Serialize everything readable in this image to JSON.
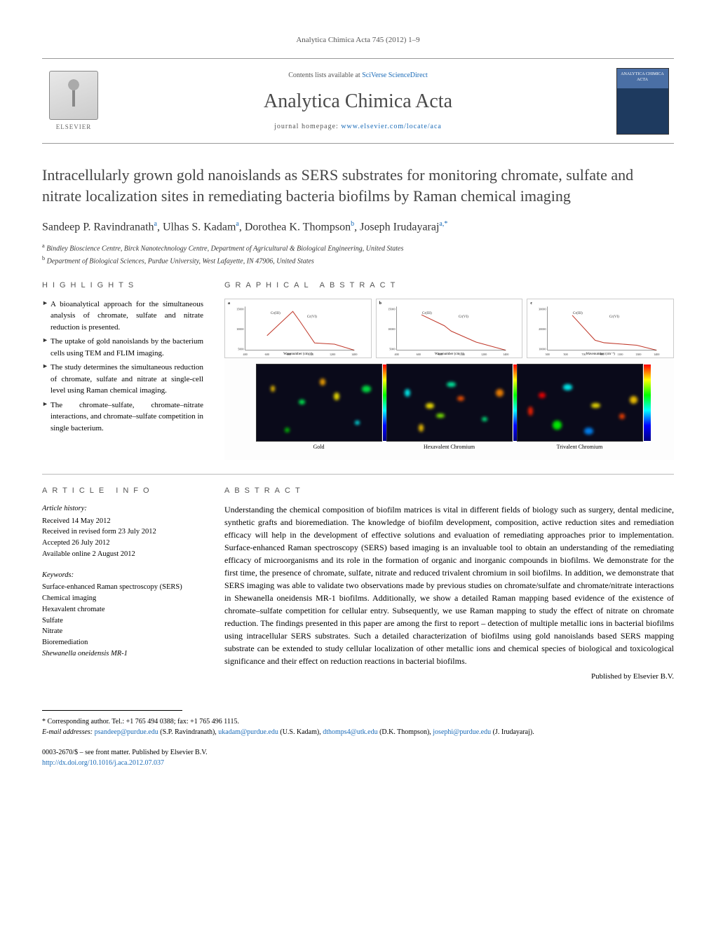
{
  "journal_ref": "Analytica Chimica Acta 745 (2012) 1–9",
  "header": {
    "contents_prefix": "Contents lists available at ",
    "contents_link": "SciVerse ScienceDirect",
    "journal_name": "Analytica Chimica Acta",
    "homepage_prefix": "journal homepage: ",
    "homepage_url": "www.elsevier.com/locate/aca",
    "publisher_label": "ELSEVIER",
    "cover_text": "ANALYTICA CHIMICA ACTA"
  },
  "title": "Intracellularly grown gold nanoislands as SERS substrates for monitoring chromate, sulfate and nitrate localization sites in remediating bacteria biofilms by Raman chemical imaging",
  "authors": [
    {
      "name": "Sandeep P. Ravindranath",
      "affil": "a"
    },
    {
      "name": "Ulhas S. Kadam",
      "affil": "a"
    },
    {
      "name": "Dorothea K. Thompson",
      "affil": "b"
    },
    {
      "name": "Joseph Irudayaraj",
      "affil": "a,*"
    }
  ],
  "author_separator": ", ",
  "affiliations": [
    {
      "sup": "a",
      "text": "Bindley Bioscience Centre, Birck Nanotechnology Centre, Department of Agricultural & Biological Engineering, United States"
    },
    {
      "sup": "b",
      "text": "Department of Biological Sciences, Purdue University, West Lafayette, IN 47906, United States"
    }
  ],
  "sections": {
    "highlights_heading": "HIGHLIGHTS",
    "graphical_heading": "GRAPHICAL ABSTRACT",
    "article_info_heading": "ARTICLE INFO",
    "abstract_heading": "ABSTRACT"
  },
  "highlights": [
    "A bioanalytical approach for the simultaneous analysis of chromate, sulfate and nitrate reduction is presented.",
    "The uptake of gold nanoislands by the bacterium cells using TEM and FLIM imaging.",
    "The study determines the simultaneous reduction of chromate, sulfate and nitrate at single-cell level using Raman chemical imaging.",
    "The chromate–sulfate, chromate–nitrate interactions, and chromate–sulfate competition in single bacterium."
  ],
  "graphical_abstract": {
    "charts": [
      {
        "label": "a",
        "ylabel": "Raman intensity (a.u.)",
        "xlabel": "Wavenumber (cm⁻¹)",
        "y_ticks": [
          "15000",
          "10000",
          "5000"
        ],
        "x_ticks": [
          "400",
          "600",
          "800",
          "1000",
          "1200",
          "1400"
        ],
        "annotations": [
          "Cr(III)",
          "Cr(VI)"
        ],
        "line_color": "#c0392b",
        "xlim": [
          300,
          1400
        ],
        "ylim": [
          0,
          18000
        ],
        "peaks": [
          [
            520,
            6000
          ],
          [
            780,
            16000
          ],
          [
            850,
            12000
          ],
          [
            1000,
            3000
          ],
          [
            1200,
            2500
          ]
        ]
      },
      {
        "label": "b",
        "ylabel": "Raman intensity (a.u.)",
        "xlabel": "Wavenumber (cm⁻¹)",
        "y_ticks": [
          "15000",
          "10000",
          "5000"
        ],
        "x_ticks": [
          "400",
          "600",
          "800",
          "1000",
          "1200",
          "1400"
        ],
        "annotations": [
          "Cr(III)",
          "Cr(VI)"
        ],
        "line_color": "#c0392b",
        "xlim": [
          300,
          1400
        ],
        "ylim": [
          0,
          16000
        ],
        "peaks": [
          [
            550,
            13000
          ],
          [
            780,
            9000
          ],
          [
            850,
            7000
          ],
          [
            1100,
            3000
          ]
        ]
      },
      {
        "label": "c",
        "ylabel": "Raman intensity (a.u.)",
        "xlabel": "Wavenumber (cm⁻¹)",
        "y_ticks": [
          "30000",
          "20000",
          "10000"
        ],
        "x_ticks": [
          "300",
          "500",
          "700",
          "900",
          "1100",
          "1300",
          "1400"
        ],
        "annotations": [
          "Cr(III)",
          "Cr(VI)"
        ],
        "line_color": "#c0392b",
        "xlim": [
          300,
          1400
        ],
        "ylim": [
          0,
          35000
        ],
        "peaks": [
          [
            550,
            28000
          ],
          [
            780,
            8000
          ],
          [
            870,
            6000
          ],
          [
            1200,
            4000
          ]
        ]
      }
    ],
    "heatmaps": [
      {
        "caption": "Gold",
        "bg": "#0a0a1a",
        "spots": [
          [
            20,
            30,
            "#ffcc00"
          ],
          [
            60,
            50,
            "#00ff55"
          ],
          [
            110,
            40,
            "#ffee00"
          ],
          [
            140,
            80,
            "#00ffff"
          ],
          [
            40,
            90,
            "#00cc00"
          ],
          [
            90,
            20,
            "#ffaa00"
          ],
          [
            150,
            30,
            "#00ee44"
          ]
        ]
      },
      {
        "caption": "Hexavalent Chromium",
        "bg": "#0a0a1a",
        "spots": [
          [
            25,
            35,
            "#00ffff"
          ],
          [
            55,
            55,
            "#ffee00"
          ],
          [
            100,
            45,
            "#ff5500"
          ],
          [
            135,
            75,
            "#00ff88"
          ],
          [
            45,
            85,
            "#ffcc00"
          ],
          [
            85,
            25,
            "#00ffaa"
          ],
          [
            155,
            35,
            "#ff8800"
          ],
          [
            70,
            70,
            "#88ff00"
          ]
        ]
      },
      {
        "caption": "Trivalent Chromium",
        "bg": "#0a0a1a",
        "spots": [
          [
            30,
            40,
            "#ff0000"
          ],
          [
            65,
            28,
            "#00ffff"
          ],
          [
            105,
            55,
            "#ffee00"
          ],
          [
            145,
            70,
            "#ff4400"
          ],
          [
            50,
            80,
            "#00ff00"
          ],
          [
            95,
            90,
            "#0088ff"
          ],
          [
            160,
            45,
            "#ffcc00"
          ],
          [
            15,
            60,
            "#ff2200"
          ]
        ]
      }
    ],
    "colorbar_gradient": [
      "#000080",
      "#0000ff",
      "#00ffff",
      "#00ff00",
      "#ffff00",
      "#ff0000"
    ]
  },
  "article_info": {
    "history_head": "Article history:",
    "history": [
      "Received 14 May 2012",
      "Received in revised form 23 July 2012",
      "Accepted 26 July 2012",
      "Available online 2 August 2012"
    ],
    "keywords_head": "Keywords:",
    "keywords": [
      "Surface-enhanced Raman spectroscopy (SERS)",
      "Chemical imaging",
      "Hexavalent chromate",
      "Sulfate",
      "Nitrate",
      "Bioremediation",
      "Shewanella oneidensis MR-1"
    ]
  },
  "abstract": "Understanding the chemical composition of biofilm matrices is vital in different fields of biology such as surgery, dental medicine, synthetic grafts and bioremediation. The knowledge of biofilm development, composition, active reduction sites and remediation efficacy will help in the development of effective solutions and evaluation of remediating approaches prior to implementation. Surface-enhanced Raman spectroscopy (SERS) based imaging is an invaluable tool to obtain an understanding of the remediating efficacy of microorganisms and its role in the formation of organic and inorganic compounds in biofilms. We demonstrate for the first time, the presence of chromate, sulfate, nitrate and reduced trivalent chromium in soil biofilms. In addition, we demonstrate that SERS imaging was able to validate two observations made by previous studies on chromate/sulfate and chromate/nitrate interactions in Shewanella oneidensis MR-1 biofilms. Additionally, we show a detailed Raman mapping based evidence of the existence of chromate–sulfate competition for cellular entry. Subsequently, we use Raman mapping to study the effect of nitrate on chromate reduction. The findings presented in this paper are among the first to report – detection of multiple metallic ions in bacterial biofilms using intracellular SERS substrates. Such a detailed characterization of biofilms using gold nanoislands based SERS mapping substrate can be extended to study cellular localization of other metallic ions and chemical species of biological and toxicological significance and their effect on reduction reactions in bacterial biofilms.",
  "published_by": "Published by Elsevier B.V.",
  "corresponding": {
    "marker": "*",
    "label": "Corresponding author. Tel.: +1 765 494 0388; fax: +1 765 496 1115.",
    "email_label": "E-mail addresses:",
    "emails": [
      {
        "addr": "psandeep@purdue.edu",
        "who": "(S.P. Ravindranath)"
      },
      {
        "addr": "ukadam@purdue.edu",
        "who": "(U.S. Kadam)"
      },
      {
        "addr": "dthomps4@utk.edu",
        "who": "(D.K. Thompson)"
      },
      {
        "addr": "josephi@purdue.edu",
        "who": "(J. Irudayaraj)"
      }
    ]
  },
  "footer": {
    "issn_line": "0003-2670/$ – see front matter. Published by Elsevier B.V.",
    "doi": "http://dx.doi.org/10.1016/j.aca.2012.07.037"
  },
  "colors": {
    "link": "#1a6bb8",
    "heading_gray": "#555",
    "title_gray": "#444",
    "spectrum_line": "#c0392b"
  }
}
